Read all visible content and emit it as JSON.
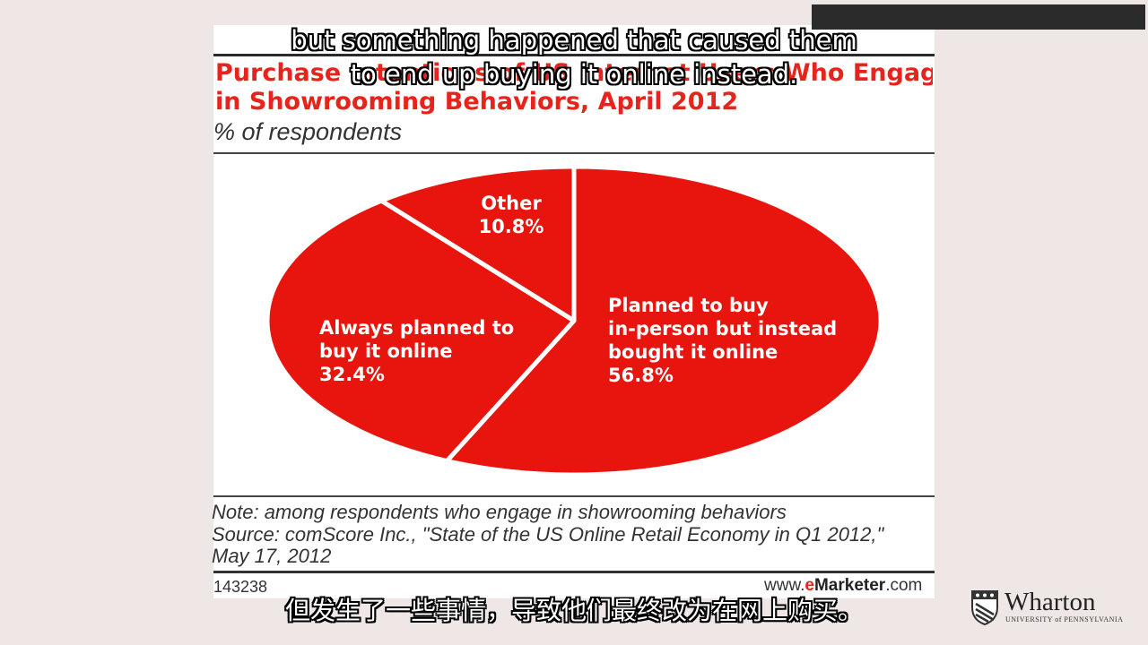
{
  "chart_data": {
    "type": "pie",
    "title_line1": "Purchase Intentions of US Internet Users Who Engage",
    "title_line2": "in Showrooming Behaviors, April 2012",
    "subtitle": "% of respondents",
    "slices": [
      {
        "label_lines": [
          "Planned to buy",
          "in-person but instead",
          "bought it online"
        ],
        "value_label": "56.8%",
        "value": 56.8
      },
      {
        "label_lines": [
          "Always planned to",
          "buy it online"
        ],
        "value_label": "32.4%",
        "value": 32.4
      },
      {
        "label_lines": [
          "Other"
        ],
        "value_label": "10.8%",
        "value": 10.8
      }
    ],
    "colors": {
      "slice_fill": "#e8150e",
      "slice_border": "#ffffff"
    },
    "note": "Note: among respondents who engage in showrooming behaviors",
    "source_line1": "Source: comScore Inc., \"State of the US Online Retail Economy in Q1 2012,\"",
    "source_line2": "May 17, 2012",
    "chart_id": "143238"
  },
  "site": {
    "prefix": "www.",
    "brand_e": "e",
    "brand_rest": "Marketer",
    "suffix": ".com"
  },
  "captions": {
    "english_line1": "but something happened that caused them",
    "english_line2": "to end up buying it online instead.",
    "chinese": "但发生了一些事情，导致他们最终改为在网上购买。"
  },
  "logo": {
    "name": "Wharton",
    "sub": "UNIVERSITY of PENNSYLVANIA",
    "icon": "penn-shield-icon"
  }
}
